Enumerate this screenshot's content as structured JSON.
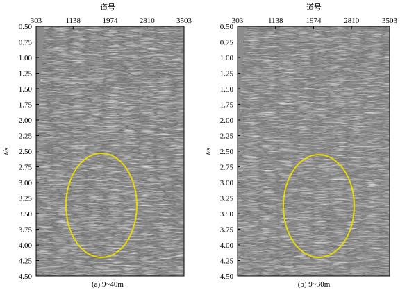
{
  "panels": [
    {
      "caption": "(a) 9~40m",
      "x_title": "道号",
      "x_ticks": [
        "303",
        "1138",
        "1974",
        "2810",
        "3503"
      ],
      "y_title": "t/s",
      "y_ticks": [
        "0.50",
        "0.75",
        "1.00",
        "1.25",
        "1.50",
        "1.75",
        "2.00",
        "2.25",
        "2.50",
        "2.75",
        "3.00",
        "3.25",
        "3.50",
        "3.75",
        "4.00",
        "4.25",
        "4.50"
      ]
    },
    {
      "caption": "(b) 9~30m",
      "x_title": "道号",
      "x_ticks": [
        "303",
        "1138",
        "1974",
        "2810",
        "3503"
      ],
      "y_title": "t/s",
      "y_ticks": [
        "0.50",
        "0.75",
        "1.00",
        "1.25",
        "1.50",
        "1.75",
        "2.00",
        "2.25",
        "2.50",
        "2.75",
        "3.00",
        "3.25",
        "3.50",
        "3.75",
        "4.00",
        "4.25",
        "4.50"
      ]
    }
  ],
  "colors": {
    "highlight_ellipse": "#e6d800",
    "section_light": "#f2f2f2",
    "section_dark": "#111111",
    "blank_zone": "#8c8c8c"
  }
}
